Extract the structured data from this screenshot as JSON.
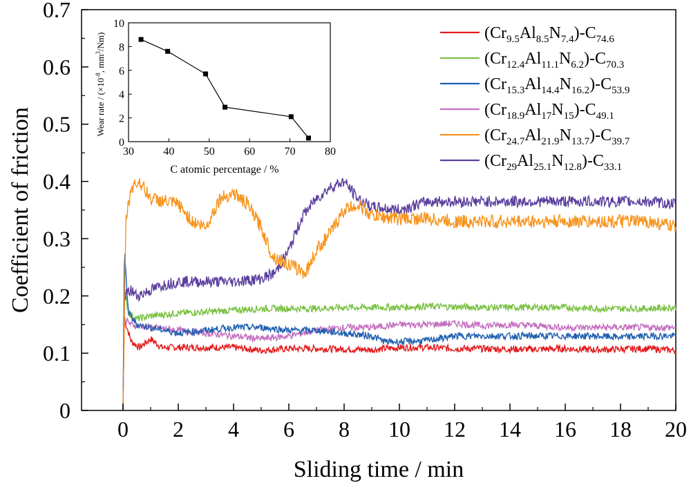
{
  "chart_data": [
    {
      "type": "line",
      "xlabel": "Sliding time / min",
      "ylabel": "Coefficient of friction",
      "xlim": [
        -1.5,
        20
      ],
      "ylim": [
        0,
        0.7
      ],
      "xticks": [
        "0",
        "2",
        "4",
        "6",
        "8",
        "10",
        "12",
        "14",
        "16",
        "18",
        "20"
      ],
      "yticks": [
        "0",
        "0.1",
        "0.2",
        "0.3",
        "0.4",
        "0.5",
        "0.6",
        "0.7"
      ],
      "legend_position": "top-right",
      "series": [
        {
          "name": "(Cr9.5Al8.5N7.4)-C74.6",
          "label_parts": [
            "(Cr",
            "9.5",
            "Al",
            "8.5",
            "N",
            "7.4",
            ")-C",
            "74.6"
          ],
          "color": "#e31a1c",
          "noise": 0.006,
          "points": [
            [
              0,
              0
            ],
            [
              0.05,
              0.16
            ],
            [
              0.3,
              0.12
            ],
            [
              0.6,
              0.11
            ],
            [
              1.0,
              0.125
            ],
            [
              1.4,
              0.11
            ],
            [
              2,
              0.11
            ],
            [
              3,
              0.11
            ],
            [
              4,
              0.11
            ],
            [
              5,
              0.105
            ],
            [
              6,
              0.108
            ],
            [
              7,
              0.108
            ],
            [
              8,
              0.107
            ],
            [
              9,
              0.106
            ],
            [
              10,
              0.11
            ],
            [
              11,
              0.11
            ],
            [
              12,
              0.108
            ],
            [
              13,
              0.108
            ],
            [
              14,
              0.107
            ],
            [
              15,
              0.107
            ],
            [
              16,
              0.108
            ],
            [
              17,
              0.106
            ],
            [
              18,
              0.107
            ],
            [
              19,
              0.108
            ],
            [
              20,
              0.105
            ]
          ]
        },
        {
          "name": "(Cr12.4Al11.1N6.2)-C70.3",
          "label_parts": [
            "(Cr",
            "12.4",
            "Al",
            "11.1",
            "N",
            "6.2",
            ")-C",
            "70.3"
          ],
          "color": "#7ac143",
          "noise": 0.006,
          "points": [
            [
              0,
              0
            ],
            [
              0.05,
              0.21
            ],
            [
              0.2,
              0.17
            ],
            [
              0.5,
              0.16
            ],
            [
              1,
              0.165
            ],
            [
              2,
              0.17
            ],
            [
              3,
              0.172
            ],
            [
              4,
              0.175
            ],
            [
              5,
              0.178
            ],
            [
              6,
              0.178
            ],
            [
              7,
              0.178
            ],
            [
              8,
              0.18
            ],
            [
              9,
              0.18
            ],
            [
              10,
              0.18
            ],
            [
              11,
              0.182
            ],
            [
              12,
              0.181
            ],
            [
              13,
              0.18
            ],
            [
              14,
              0.18
            ],
            [
              15,
              0.18
            ],
            [
              16,
              0.18
            ],
            [
              17,
              0.178
            ],
            [
              18,
              0.178
            ],
            [
              19,
              0.178
            ],
            [
              20,
              0.18
            ]
          ]
        },
        {
          "name": "(Cr15.3Al14.4N16.2)-C53.9",
          "label_parts": [
            "(Cr",
            "15.3",
            "Al",
            "14.4",
            "N",
            "16.2",
            ")-C",
            "53.9"
          ],
          "color": "#1f5fb0",
          "noise": 0.006,
          "points": [
            [
              0,
              0
            ],
            [
              0.05,
              0.28
            ],
            [
              0.2,
              0.17
            ],
            [
              0.5,
              0.15
            ],
            [
              1,
              0.145
            ],
            [
              2,
              0.135
            ],
            [
              3,
              0.14
            ],
            [
              4,
              0.145
            ],
            [
              5,
              0.145
            ],
            [
              6,
              0.14
            ],
            [
              7,
              0.14
            ],
            [
              8,
              0.135
            ],
            [
              9,
              0.13
            ],
            [
              9.5,
              0.12
            ],
            [
              10,
              0.12
            ],
            [
              11,
              0.122
            ],
            [
              12,
              0.13
            ],
            [
              13,
              0.13
            ],
            [
              14,
              0.13
            ],
            [
              15,
              0.13
            ],
            [
              16,
              0.13
            ],
            [
              17,
              0.13
            ],
            [
              18,
              0.128
            ],
            [
              19,
              0.13
            ],
            [
              20,
              0.13
            ]
          ]
        },
        {
          "name": "(Cr18.9Al17N15)-C49.1",
          "label_parts": [
            "(Cr",
            "18.9",
            "Al",
            "17",
            "N",
            "15",
            ")-C",
            "49.1"
          ],
          "color": "#c46fc0",
          "noise": 0.006,
          "points": [
            [
              0,
              0
            ],
            [
              0.05,
              0.16
            ],
            [
              0.3,
              0.15
            ],
            [
              1,
              0.145
            ],
            [
              2,
              0.14
            ],
            [
              3,
              0.135
            ],
            [
              4,
              0.13
            ],
            [
              5,
              0.125
            ],
            [
              6,
              0.13
            ],
            [
              7,
              0.14
            ],
            [
              8,
              0.145
            ],
            [
              9,
              0.145
            ],
            [
              10,
              0.15
            ],
            [
              11,
              0.15
            ],
            [
              12,
              0.152
            ],
            [
              13,
              0.148
            ],
            [
              14,
              0.15
            ],
            [
              15,
              0.148
            ],
            [
              16,
              0.145
            ],
            [
              17,
              0.145
            ],
            [
              18,
              0.145
            ],
            [
              19,
              0.145
            ],
            [
              20,
              0.145
            ]
          ]
        },
        {
          "name": "(Cr24.7Al21.9N13.7)-C39.7",
          "label_parts": [
            "(Cr",
            "24.7",
            "Al",
            "21.9",
            "N",
            "13.7",
            ")-C",
            "39.7"
          ],
          "color": "#f7941d",
          "noise": 0.012,
          "points": [
            [
              0,
              0
            ],
            [
              0.1,
              0.33
            ],
            [
              0.3,
              0.39
            ],
            [
              0.6,
              0.4
            ],
            [
              1,
              0.37
            ],
            [
              2,
              0.36
            ],
            [
              2.5,
              0.33
            ],
            [
              3,
              0.32
            ],
            [
              3.5,
              0.37
            ],
            [
              4,
              0.38
            ],
            [
              4.5,
              0.36
            ],
            [
              5,
              0.32
            ],
            [
              5.4,
              0.27
            ],
            [
              5.8,
              0.26
            ],
            [
              6.2,
              0.25
            ],
            [
              6.6,
              0.24
            ],
            [
              7,
              0.28
            ],
            [
              7.5,
              0.31
            ],
            [
              8,
              0.35
            ],
            [
              8.5,
              0.36
            ],
            [
              9,
              0.34
            ],
            [
              10,
              0.335
            ],
            [
              11,
              0.335
            ],
            [
              12,
              0.33
            ],
            [
              13,
              0.33
            ],
            [
              14,
              0.33
            ],
            [
              15,
              0.33
            ],
            [
              16,
              0.33
            ],
            [
              17,
              0.33
            ],
            [
              18,
              0.33
            ],
            [
              19,
              0.33
            ],
            [
              20,
              0.32
            ]
          ]
        },
        {
          "name": "(Cr29Al25.1N12.8)-C33.1",
          "label_parts": [
            "(Cr",
            "29",
            "Al",
            "25.1",
            "N",
            "12.8",
            ")-C",
            "33.1"
          ],
          "color": "#5b3f9e",
          "noise": 0.01,
          "points": [
            [
              0,
              0
            ],
            [
              0.05,
              0.2
            ],
            [
              0.3,
              0.21
            ],
            [
              0.5,
              0.2
            ],
            [
              1,
              0.21
            ],
            [
              1.5,
              0.22
            ],
            [
              2,
              0.225
            ],
            [
              3,
              0.225
            ],
            [
              4,
              0.225
            ],
            [
              5,
              0.23
            ],
            [
              5.5,
              0.24
            ],
            [
              6,
              0.28
            ],
            [
              6.5,
              0.34
            ],
            [
              7,
              0.37
            ],
            [
              7.5,
              0.39
            ],
            [
              8,
              0.4
            ],
            [
              8.5,
              0.37
            ],
            [
              9,
              0.355
            ],
            [
              10,
              0.35
            ],
            [
              11,
              0.365
            ],
            [
              12,
              0.365
            ],
            [
              13,
              0.365
            ],
            [
              14,
              0.365
            ],
            [
              15,
              0.365
            ],
            [
              16,
              0.365
            ],
            [
              17,
              0.365
            ],
            [
              18,
              0.365
            ],
            [
              19,
              0.365
            ],
            [
              20,
              0.36
            ]
          ]
        }
      ]
    },
    {
      "type": "line",
      "xlabel": "C atomic percentage / %",
      "ylabel": "Wear rate / (×10⁻⁸, mm³/Nm)",
      "ylabel_parts": [
        "Wear rate / (×10",
        "-8",
        ", mm",
        "3",
        "/Nm)"
      ],
      "xlim": [
        30,
        80
      ],
      "ylim": [
        0,
        10
      ],
      "xticks": [
        "30",
        "40",
        "50",
        "60",
        "70",
        "80"
      ],
      "yticks": [
        "0",
        "2",
        "4",
        "6",
        "8",
        "10"
      ],
      "marker": "square",
      "x": [
        33.1,
        39.7,
        49.1,
        53.9,
        70.3,
        74.6
      ],
      "y": [
        8.6,
        7.6,
        5.7,
        2.9,
        2.1,
        0.3
      ]
    }
  ]
}
